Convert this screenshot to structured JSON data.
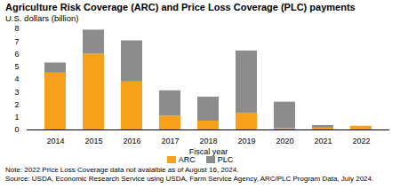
{
  "chart_data": {
    "type": "bar",
    "title": "Agriculture Risk Coverage (ARC) and Price Loss Coverage (PLC) payments",
    "subtitle": "U.S. dollars (billion)",
    "xlabel": "Fiscal year",
    "categories": [
      "2014",
      "2015",
      "2016",
      "2017",
      "2018",
      "2019",
      "2020",
      "2021",
      "2022"
    ],
    "series": [
      {
        "name": "ARC",
        "color": "#f7a11a",
        "values": [
          4.5,
          6.0,
          3.8,
          1.1,
          0.7,
          1.3,
          0.1,
          0.15,
          0.3
        ]
      },
      {
        "name": "PLC",
        "color": "#8c8c8c",
        "values": [
          0.8,
          1.9,
          3.25,
          2.0,
          1.9,
          4.95,
          2.1,
          0.2,
          null
        ]
      }
    ],
    "stacked": true,
    "ylim": [
      0,
      8
    ],
    "yticks": [
      0,
      1,
      2,
      3,
      4,
      5,
      6,
      7,
      8
    ],
    "grid": false,
    "legend": "bottom",
    "notes": [
      "Note: 2022 Price Loss Coverage data not avaialble as of August 16, 2024.",
      "Source: USDA, Economic Research Service using USDA, Farm Service Agency, ARC/PLC Program Data, July 2024."
    ]
  }
}
